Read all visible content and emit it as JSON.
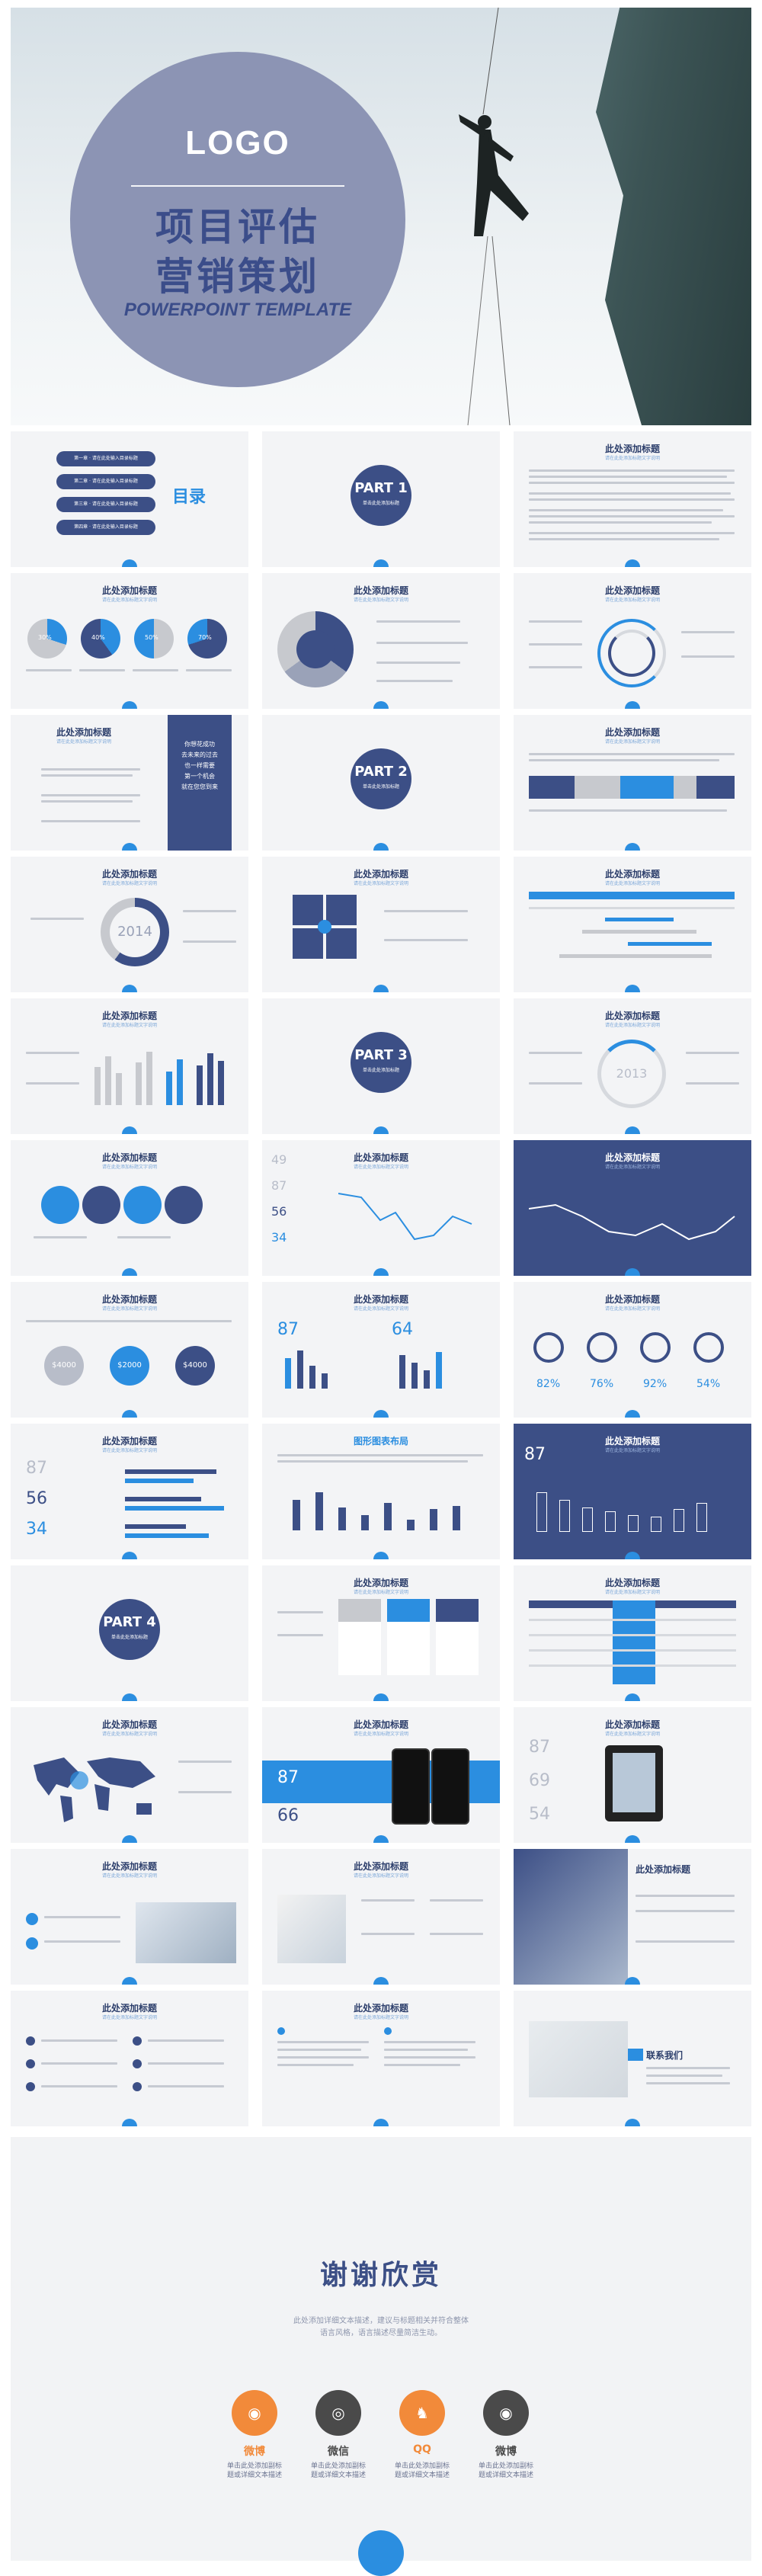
{
  "hero": {
    "logo": "LOGO",
    "title_line1": "项目评估",
    "title_line2": "营销策划",
    "subtitle": "POWERPOINT TEMPLATE"
  },
  "toc": {
    "title": "目录",
    "items": [
      "第一章 · 请在此处输入目录标题",
      "第二章 · 请在此处输入目录标题",
      "第三章 · 请在此处输入目录标题",
      "第四章 · 请在此处输入目录标题"
    ]
  },
  "common": {
    "slide_title": "此处添加标题",
    "slide_subtitle": "请在此处添加标题文字说明",
    "part_sub": "单击此处添加标题"
  },
  "parts": [
    "PART 1",
    "PART 2",
    "PART 3",
    "PART 4"
  ],
  "year_labels": [
    "2014",
    "2013"
  ],
  "quote": [
    "你想花成功",
    "去未来的过去",
    "也一样需要",
    "第一个机会",
    "就在您您到来"
  ],
  "pies": [
    "30%",
    "40%",
    "50%",
    "70%"
  ],
  "stats_left": [
    "49",
    "87",
    "56",
    "34"
  ],
  "stats_mid": [
    "87",
    "64"
  ],
  "rings": [
    "82%",
    "76%",
    "92%",
    "54%"
  ],
  "money": [
    "$4000",
    "$2000",
    "$4000"
  ],
  "numbers_right": [
    "87",
    "56",
    "34"
  ],
  "dark_num": "87",
  "layout_title": "图形图表布局",
  "phone_nums": [
    "87",
    "66"
  ],
  "tablet_nums": [
    "87",
    "69",
    "54"
  ],
  "contact": "联系我们",
  "thanks": {
    "title": "谢谢欣赏",
    "line1": "此处添加详细文本描述，建议与标题相关并符合整体",
    "line2": "语言风格，语言描述尽量简洁生动。",
    "social": [
      {
        "icon": "weibo-icon",
        "label": "微博",
        "color": "#f28a3a",
        "d1": "单击此处添加副标",
        "d2": "题或详细文本描述"
      },
      {
        "icon": "wechat-icon",
        "label": "微信",
        "color": "#4a4a4a",
        "d1": "单击此处添加副标",
        "d2": "题或详细文本描述"
      },
      {
        "icon": "qq-icon",
        "label": "QQ",
        "color": "#f28a3a",
        "d1": "单击此处添加副标",
        "d2": "题或详细文本描述"
      },
      {
        "icon": "weibo-alt-icon",
        "label": "微博",
        "color": "#4a4a4a",
        "d1": "单击此处添加副标",
        "d2": "题或详细文本描述"
      }
    ]
  }
}
